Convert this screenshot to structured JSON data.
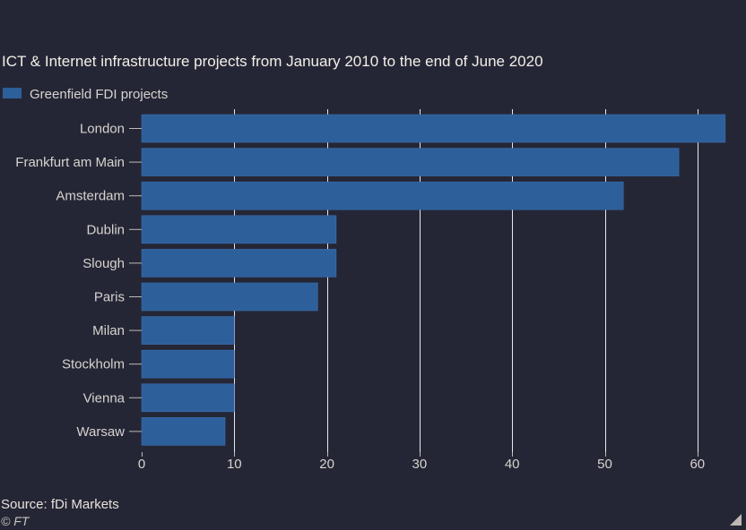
{
  "colors": {
    "background": "#252635",
    "bar": "#2d5f9b",
    "bar_edge": "#3b6fb0",
    "gridline": "#ffffff",
    "text": "#d6d3d0"
  },
  "chart_data": {
    "type": "bar",
    "orientation": "horizontal",
    "title": "ICT & Internet infrastructure projects from January 2010 to the end of June 2020",
    "categories": [
      "London",
      "Frankfurt am Main",
      "Amsterdam",
      "Dublin",
      "Slough",
      "Paris",
      "Milan",
      "Stockholm",
      "Vienna",
      "Warsaw"
    ],
    "series": [
      {
        "name": "Greenfield FDI projects",
        "values": [
          63,
          58,
          52,
          21,
          21,
          19,
          10,
          10,
          10,
          9
        ]
      }
    ],
    "xlabel": "",
    "ylabel": "",
    "xlim": [
      0,
      63
    ],
    "xticks": [
      0,
      10,
      20,
      30,
      40,
      50,
      60
    ],
    "grid": true,
    "legend_position": "top-left"
  },
  "footer": {
    "source": "Source: fDi Markets",
    "copyright": "© FT"
  },
  "icons": {
    "resize": "resize-corner-icon"
  }
}
